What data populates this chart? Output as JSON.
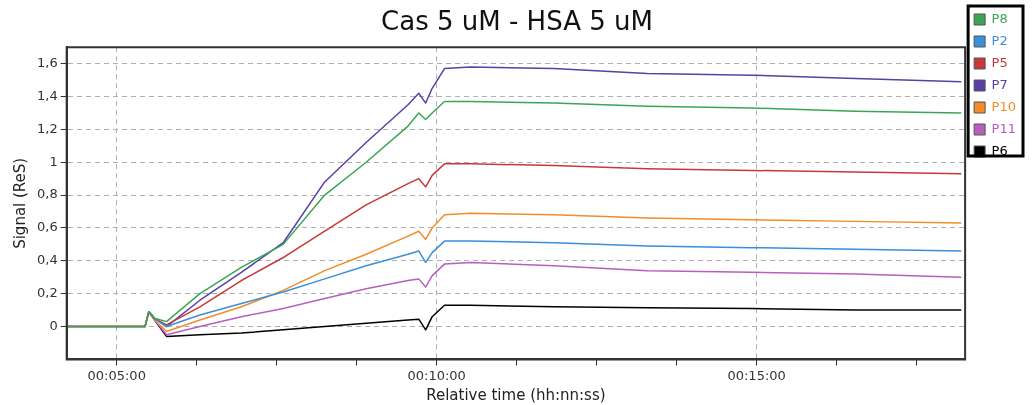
{
  "chart_data": {
    "type": "line",
    "title": "Cas 5 uM - HSA 5 uM",
    "xlabel": "Relative time (hh:nn:ss)",
    "ylabel": "Signal (ReS)",
    "x": [
      0.0703,
      0.0907,
      0.0917,
      0.0932,
      0.0963,
      0.105,
      0.1158,
      0.1267,
      0.1375,
      0.1483,
      0.1592,
      0.162,
      0.1638,
      0.1655,
      0.1687,
      0.1755,
      0.1972,
      0.2215,
      0.2487,
      0.2757,
      0.3033
    ],
    "series": [
      {
        "name": "P8",
        "color": "#3aa655",
        "values": [
          0,
          0,
          0.09,
          0.05,
          0.03,
          0.2,
          0.36,
          0.5,
          0.8,
          1.0,
          1.22,
          1.3,
          1.26,
          1.3,
          1.37,
          1.37,
          1.36,
          1.34,
          1.33,
          1.31,
          1.3
        ]
      },
      {
        "name": "P2",
        "color": "#3a8fd9",
        "values": [
          null,
          null,
          0.09,
          0.05,
          0.0,
          0.07,
          0.14,
          0.21,
          0.29,
          0.37,
          0.44,
          0.46,
          0.39,
          0.45,
          0.52,
          0.52,
          0.51,
          0.49,
          0.48,
          0.47,
          0.46
        ]
      },
      {
        "name": "P5",
        "color": "#c8383a",
        "values": [
          0,
          0,
          0.09,
          0.05,
          0.01,
          0.12,
          0.28,
          0.42,
          0.58,
          0.74,
          0.87,
          0.9,
          0.85,
          0.92,
          0.99,
          0.99,
          0.98,
          0.96,
          0.95,
          0.94,
          0.93
        ]
      },
      {
        "name": "P7",
        "color": "#5a3fa6",
        "values": [
          null,
          null,
          0.09,
          0.05,
          0.0,
          0.16,
          0.33,
          0.51,
          0.88,
          1.12,
          1.35,
          1.42,
          1.36,
          1.45,
          1.57,
          1.58,
          1.57,
          1.54,
          1.53,
          1.51,
          1.49
        ]
      },
      {
        "name": "P10",
        "color": "#f28c28",
        "values": [
          null,
          null,
          0.09,
          0.04,
          -0.03,
          0.04,
          0.12,
          0.22,
          0.34,
          0.44,
          0.55,
          0.58,
          0.53,
          0.6,
          0.68,
          0.69,
          0.68,
          0.66,
          0.65,
          0.64,
          0.63
        ]
      },
      {
        "name": "P11",
        "color": "#b85ebf",
        "values": [
          null,
          null,
          0.09,
          0.04,
          -0.05,
          0.0,
          0.06,
          0.11,
          0.17,
          0.23,
          0.28,
          0.29,
          0.24,
          0.31,
          0.38,
          0.39,
          0.37,
          0.34,
          0.33,
          0.32,
          0.3
        ]
      },
      {
        "name": "P6",
        "color": "#000000",
        "values": [
          0,
          0,
          0.09,
          0.04,
          -0.06,
          -0.05,
          -0.04,
          -0.02,
          0.0,
          0.02,
          0.04,
          0.045,
          -0.02,
          0.06,
          0.13,
          0.13,
          0.12,
          0.115,
          0.11,
          0.1,
          0.1
        ]
      }
    ],
    "xlim": [
      0.0703,
      0.3043
    ],
    "xticks": [
      {
        "value": 0.083333,
        "label": "00:05:00"
      },
      {
        "value": 0.104167,
        "label": null
      },
      {
        "value": 0.125,
        "label": null
      },
      {
        "value": 0.145833,
        "label": null
      },
      {
        "value": 0.166667,
        "label": "00:10:00"
      },
      {
        "value": 0.1875,
        "label": null
      },
      {
        "value": 0.208333,
        "label": null
      },
      {
        "value": 0.229167,
        "label": null
      },
      {
        "value": 0.25,
        "label": "00:15:00"
      },
      {
        "value": 0.270833,
        "label": null
      },
      {
        "value": 0.291667,
        "label": null
      }
    ],
    "ylim": [
      -0.2,
      1.7
    ],
    "yticks": [
      0,
      {
        "value": 0.2,
        "label": "0,2"
      },
      {
        "value": 0.4,
        "label": "0,4"
      },
      {
        "value": 0.6,
        "label": "0,6"
      },
      {
        "value": 0.8,
        "label": "0,8"
      },
      1,
      {
        "value": 1.2,
        "label": "1,2"
      },
      {
        "value": 1.4,
        "label": "1,4"
      },
      {
        "value": 1.6,
        "label": "1,6"
      }
    ],
    "grid": true,
    "legend": "top right",
    "marker": "none",
    "line_style": "solid"
  }
}
